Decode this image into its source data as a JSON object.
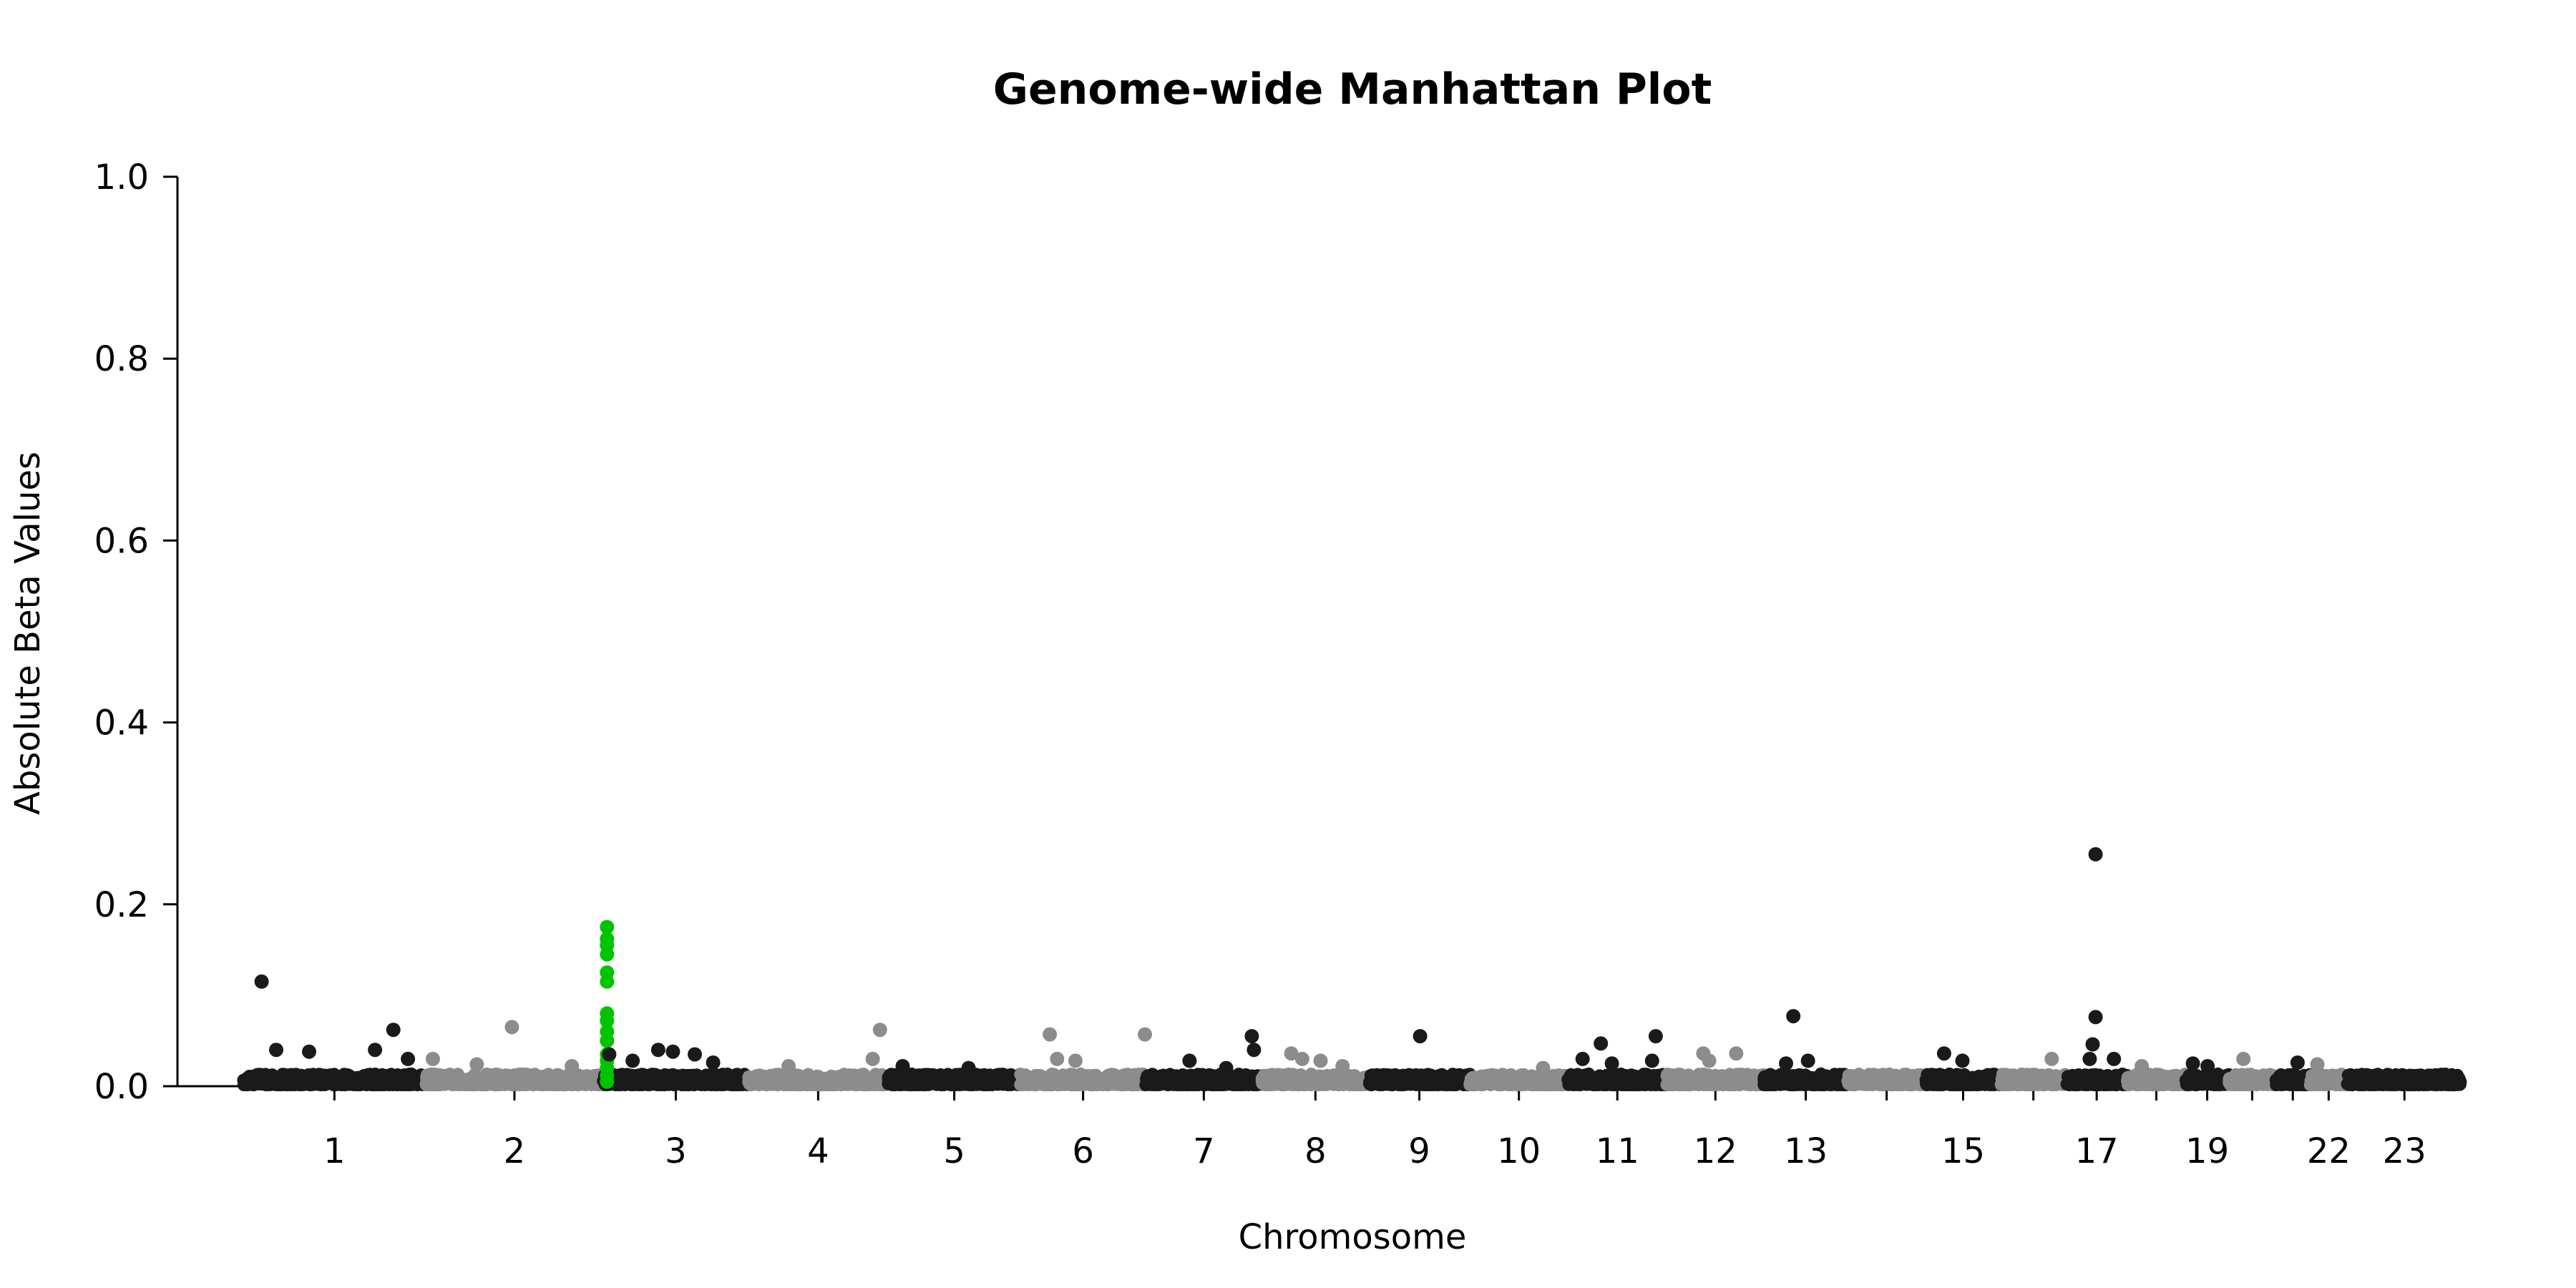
{
  "chart_data": {
    "type": "scatter",
    "title": "Genome-wide Manhattan Plot",
    "xlabel": "Chromosome",
    "ylabel": "Absolute Beta Values",
    "ylim": [
      0,
      1.0
    ],
    "y_ticks": [
      0.0,
      0.2,
      0.4,
      0.6,
      0.8,
      1.0
    ],
    "y_tick_labels": [
      "0.0",
      "0.2",
      "0.4",
      "0.6",
      "0.8",
      "1.0"
    ],
    "grid": false,
    "legend": "none",
    "colors": {
      "odd": "#1a1a1a",
      "even": "#8c8c8c",
      "highlight": "#00c400"
    },
    "chromosomes": [
      {
        "chr": "1",
        "label": "1",
        "length": 249
      },
      {
        "chr": "2",
        "label": "2",
        "length": 243
      },
      {
        "chr": "3",
        "label": "3",
        "length": 198
      },
      {
        "chr": "4",
        "label": "4",
        "length": 191
      },
      {
        "chr": "5",
        "label": "5",
        "length": 181
      },
      {
        "chr": "6",
        "label": "6",
        "length": 171
      },
      {
        "chr": "7",
        "label": "7",
        "length": 159
      },
      {
        "chr": "8",
        "label": "8",
        "length": 146
      },
      {
        "chr": "9",
        "label": "9",
        "length": 138
      },
      {
        "chr": "10",
        "label": "10",
        "length": 134
      },
      {
        "chr": "11",
        "label": "11",
        "length": 135
      },
      {
        "chr": "12",
        "label": "12",
        "length": 133
      },
      {
        "chr": "13",
        "label": "13",
        "length": 114
      },
      {
        "chr": "14",
        "label": "",
        "length": 107
      },
      {
        "chr": "15",
        "label": "15",
        "length": 102
      },
      {
        "chr": "16",
        "label": "",
        "length": 90
      },
      {
        "chr": "17",
        "label": "17",
        "length": 83
      },
      {
        "chr": "18",
        "label": "",
        "length": 80
      },
      {
        "chr": "19",
        "label": "19",
        "length": 59
      },
      {
        "chr": "20",
        "label": "",
        "length": 64
      },
      {
        "chr": "21",
        "label": "",
        "length": 47
      },
      {
        "chr": "22",
        "label": "22",
        "length": 51
      },
      {
        "chr": "23",
        "label": "23",
        "length": 156
      }
    ],
    "notable_points": [
      {
        "chr": "1",
        "pos": 25,
        "y": 0.115
      },
      {
        "chr": "1",
        "pos": 45,
        "y": 0.04
      },
      {
        "chr": "1",
        "pos": 90,
        "y": 0.038
      },
      {
        "chr": "1",
        "pos": 180,
        "y": 0.04
      },
      {
        "chr": "1",
        "pos": 205,
        "y": 0.062
      },
      {
        "chr": "1",
        "pos": 225,
        "y": 0.03
      },
      {
        "chr": "2",
        "pos": 10,
        "y": 0.03
      },
      {
        "chr": "2",
        "pos": 70,
        "y": 0.024
      },
      {
        "chr": "2",
        "pos": 118,
        "y": 0.065
      },
      {
        "chr": "2",
        "pos": 200,
        "y": 0.022
      },
      {
        "chr": "3",
        "pos": 5,
        "y": 0.175,
        "highlight": true
      },
      {
        "chr": "3",
        "pos": 5,
        "y": 0.162,
        "highlight": true
      },
      {
        "chr": "3",
        "pos": 5,
        "y": 0.155,
        "highlight": true
      },
      {
        "chr": "3",
        "pos": 5,
        "y": 0.145,
        "highlight": true
      },
      {
        "chr": "3",
        "pos": 5,
        "y": 0.125,
        "highlight": true
      },
      {
        "chr": "3",
        "pos": 5,
        "y": 0.115,
        "highlight": true
      },
      {
        "chr": "3",
        "pos": 5,
        "y": 0.08,
        "highlight": true
      },
      {
        "chr": "3",
        "pos": 5,
        "y": 0.072,
        "highlight": true
      },
      {
        "chr": "3",
        "pos": 5,
        "y": 0.06,
        "highlight": true
      },
      {
        "chr": "3",
        "pos": 5,
        "y": 0.05,
        "highlight": true
      },
      {
        "chr": "3",
        "pos": 5,
        "y": 0.035,
        "highlight": true
      },
      {
        "chr": "3",
        "pos": 5,
        "y": 0.028,
        "highlight": true
      },
      {
        "chr": "3",
        "pos": 5,
        "y": 0.02,
        "highlight": true
      },
      {
        "chr": "3",
        "pos": 5,
        "y": 0.012,
        "highlight": true
      },
      {
        "chr": "3",
        "pos": 5,
        "y": 0.005,
        "highlight": true
      },
      {
        "chr": "3",
        "pos": 8,
        "y": 0.035
      },
      {
        "chr": "3",
        "pos": 40,
        "y": 0.028
      },
      {
        "chr": "3",
        "pos": 75,
        "y": 0.04
      },
      {
        "chr": "3",
        "pos": 95,
        "y": 0.038
      },
      {
        "chr": "3",
        "pos": 125,
        "y": 0.035
      },
      {
        "chr": "3",
        "pos": 150,
        "y": 0.026
      },
      {
        "chr": "4",
        "pos": 55,
        "y": 0.022
      },
      {
        "chr": "4",
        "pos": 180,
        "y": 0.062
      },
      {
        "chr": "4",
        "pos": 170,
        "y": 0.03
      },
      {
        "chr": "5",
        "pos": 20,
        "y": 0.022
      },
      {
        "chr": "5",
        "pos": 110,
        "y": 0.02
      },
      {
        "chr": "6",
        "pos": 40,
        "y": 0.057
      },
      {
        "chr": "6",
        "pos": 50,
        "y": 0.03
      },
      {
        "chr": "6",
        "pos": 75,
        "y": 0.028
      },
      {
        "chr": "6",
        "pos": 170,
        "y": 0.057
      },
      {
        "chr": "7",
        "pos": 60,
        "y": 0.028
      },
      {
        "chr": "7",
        "pos": 110,
        "y": 0.02
      },
      {
        "chr": "7",
        "pos": 145,
        "y": 0.055
      },
      {
        "chr": "7",
        "pos": 148,
        "y": 0.04
      },
      {
        "chr": "8",
        "pos": 40,
        "y": 0.036
      },
      {
        "chr": "8",
        "pos": 55,
        "y": 0.03
      },
      {
        "chr": "8",
        "pos": 80,
        "y": 0.028
      },
      {
        "chr": "8",
        "pos": 110,
        "y": 0.022
      },
      {
        "chr": "9",
        "pos": 70,
        "y": 0.055
      },
      {
        "chr": "10",
        "pos": 100,
        "y": 0.02
      },
      {
        "chr": "11",
        "pos": 20,
        "y": 0.03
      },
      {
        "chr": "11",
        "pos": 45,
        "y": 0.047
      },
      {
        "chr": "11",
        "pos": 60,
        "y": 0.025
      },
      {
        "chr": "11",
        "pos": 120,
        "y": 0.055
      },
      {
        "chr": "11",
        "pos": 115,
        "y": 0.028
      },
      {
        "chr": "12",
        "pos": 50,
        "y": 0.036
      },
      {
        "chr": "12",
        "pos": 58,
        "y": 0.028
      },
      {
        "chr": "12",
        "pos": 95,
        "y": 0.036
      },
      {
        "chr": "13",
        "pos": 40,
        "y": 0.077
      },
      {
        "chr": "13",
        "pos": 30,
        "y": 0.025
      },
      {
        "chr": "13",
        "pos": 60,
        "y": 0.028
      },
      {
        "chr": "15",
        "pos": 25,
        "y": 0.036
      },
      {
        "chr": "15",
        "pos": 50,
        "y": 0.028
      },
      {
        "chr": "16",
        "pos": 70,
        "y": 0.03
      },
      {
        "chr": "17",
        "pos": 40,
        "y": 0.255
      },
      {
        "chr": "17",
        "pos": 40,
        "y": 0.076
      },
      {
        "chr": "17",
        "pos": 36,
        "y": 0.046
      },
      {
        "chr": "17",
        "pos": 32,
        "y": 0.03
      },
      {
        "chr": "17",
        "pos": 65,
        "y": 0.03
      },
      {
        "chr": "18",
        "pos": 20,
        "y": 0.022
      },
      {
        "chr": "19",
        "pos": 10,
        "y": 0.025
      },
      {
        "chr": "19",
        "pos": 30,
        "y": 0.022
      },
      {
        "chr": "20",
        "pos": 20,
        "y": 0.03
      },
      {
        "chr": "21",
        "pos": 30,
        "y": 0.026
      },
      {
        "chr": "22",
        "pos": 10,
        "y": 0.024
      }
    ]
  }
}
